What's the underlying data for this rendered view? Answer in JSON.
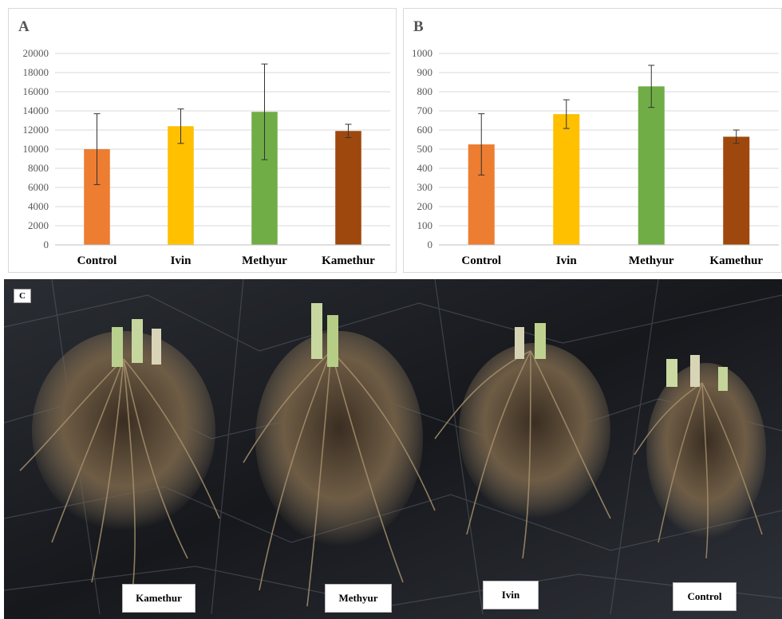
{
  "chart_data": [
    {
      "type": "bar",
      "panel_label": "A",
      "categories": [
        "Control",
        "Ivin",
        "Methyur",
        "Kamethur"
      ],
      "values": [
        10000,
        12400,
        13900,
        11900
      ],
      "error": [
        3700,
        1800,
        5000,
        700
      ],
      "colors": [
        "#ED7D31",
        "#FFC000",
        "#70AD47",
        "#9E480E"
      ],
      "ylim": [
        0,
        20000
      ],
      "yticks": [
        "0",
        "2000",
        "4000",
        "6000",
        "8000",
        "10000",
        "12000",
        "14000",
        "16000",
        "18000",
        "20000"
      ],
      "grid": true
    },
    {
      "type": "bar",
      "panel_label": "B",
      "categories": [
        "Control",
        "Ivin",
        "Methyur",
        "Kamethur"
      ],
      "values": [
        525,
        683,
        828,
        565
      ],
      "error": [
        160,
        75,
        110,
        35
      ],
      "colors": [
        "#ED7D31",
        "#FFC000",
        "#70AD47",
        "#9E480E"
      ],
      "ylim": [
        0,
        1000
      ],
      "yticks": [
        "0",
        "100",
        "200",
        "300",
        "400",
        "500",
        "600",
        "700",
        "800",
        "900",
        "1000"
      ],
      "grid": true
    }
  ],
  "photo": {
    "panel_label": "C",
    "tags": [
      "Kamethur",
      "Methyur",
      "Ivin",
      "Control"
    ]
  }
}
